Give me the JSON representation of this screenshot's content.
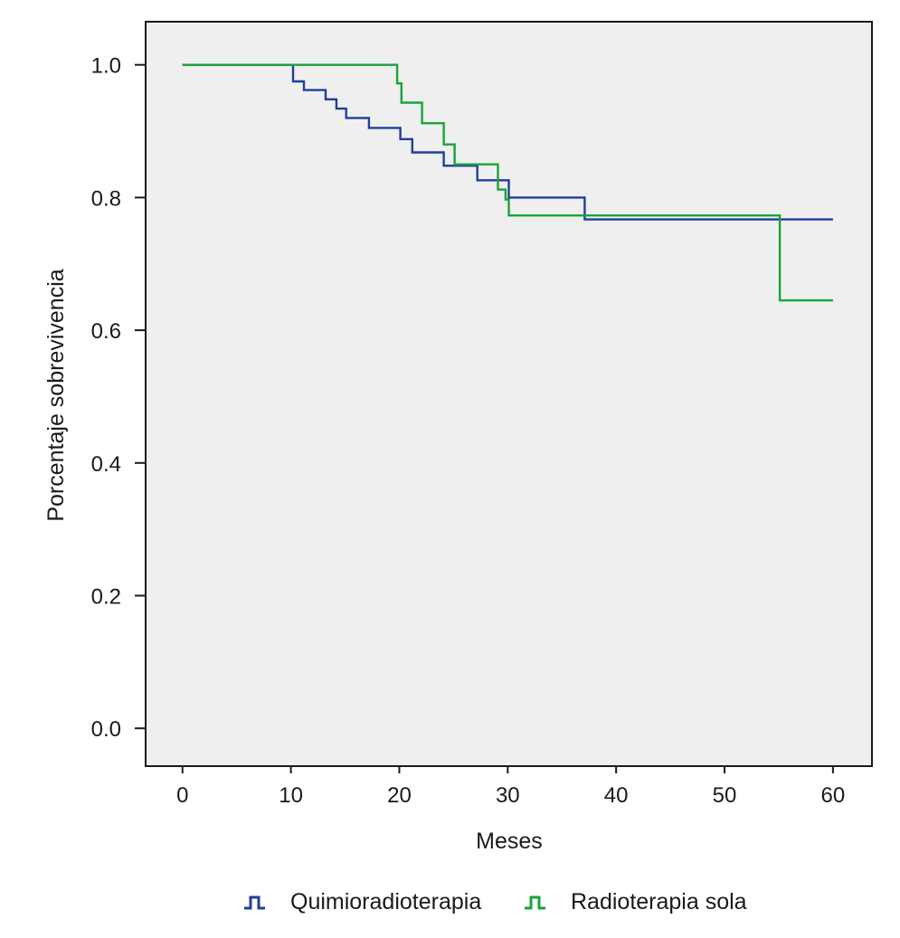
{
  "chart_data": {
    "type": "line",
    "title": "",
    "xlabel": "Meses",
    "ylabel": "Porcentaje sobrevivencia",
    "xlim": [
      -3.4,
      63.6
    ],
    "ylim": [
      -0.057,
      1.065
    ],
    "x_ticks": [
      0,
      10,
      20,
      30,
      40,
      50,
      60
    ],
    "y_ticks": [
      0.0,
      0.2,
      0.4,
      0.6,
      0.8,
      1.0
    ],
    "x_tick_labels": [
      "0",
      "10",
      "20",
      "30",
      "40",
      "50",
      "60"
    ],
    "y_tick_labels": [
      "0.0",
      "0.2",
      "0.4",
      "0.6",
      "0.8",
      "1.0"
    ],
    "step": true,
    "grid": false,
    "plot_background": "#efefef",
    "legend": {
      "position": "bottom"
    },
    "series": [
      {
        "name": "Quimioradioterapia",
        "color": "#1f3f99",
        "x": [
          0,
          10,
          10.2,
          11.2,
          13.2,
          14.2,
          15.1,
          17.2,
          20.1,
          21.2,
          24.1,
          27.2,
          30.1,
          37.1,
          60
        ],
        "y": [
          1.0,
          1.0,
          0.975,
          0.962,
          0.948,
          0.934,
          0.92,
          0.905,
          0.888,
          0.868,
          0.848,
          0.826,
          0.8,
          0.767,
          0.767
        ]
      },
      {
        "name": "Radioterapia sola",
        "color": "#1aa33a",
        "x": [
          0,
          19.1,
          19.8,
          20.2,
          22.1,
          24.1,
          25.1,
          29.1,
          29.8,
          30.1,
          55.1,
          60
        ],
        "y": [
          1.0,
          1.0,
          0.972,
          0.943,
          0.912,
          0.88,
          0.85,
          0.812,
          0.797,
          0.773,
          0.645,
          0.645
        ]
      }
    ]
  }
}
